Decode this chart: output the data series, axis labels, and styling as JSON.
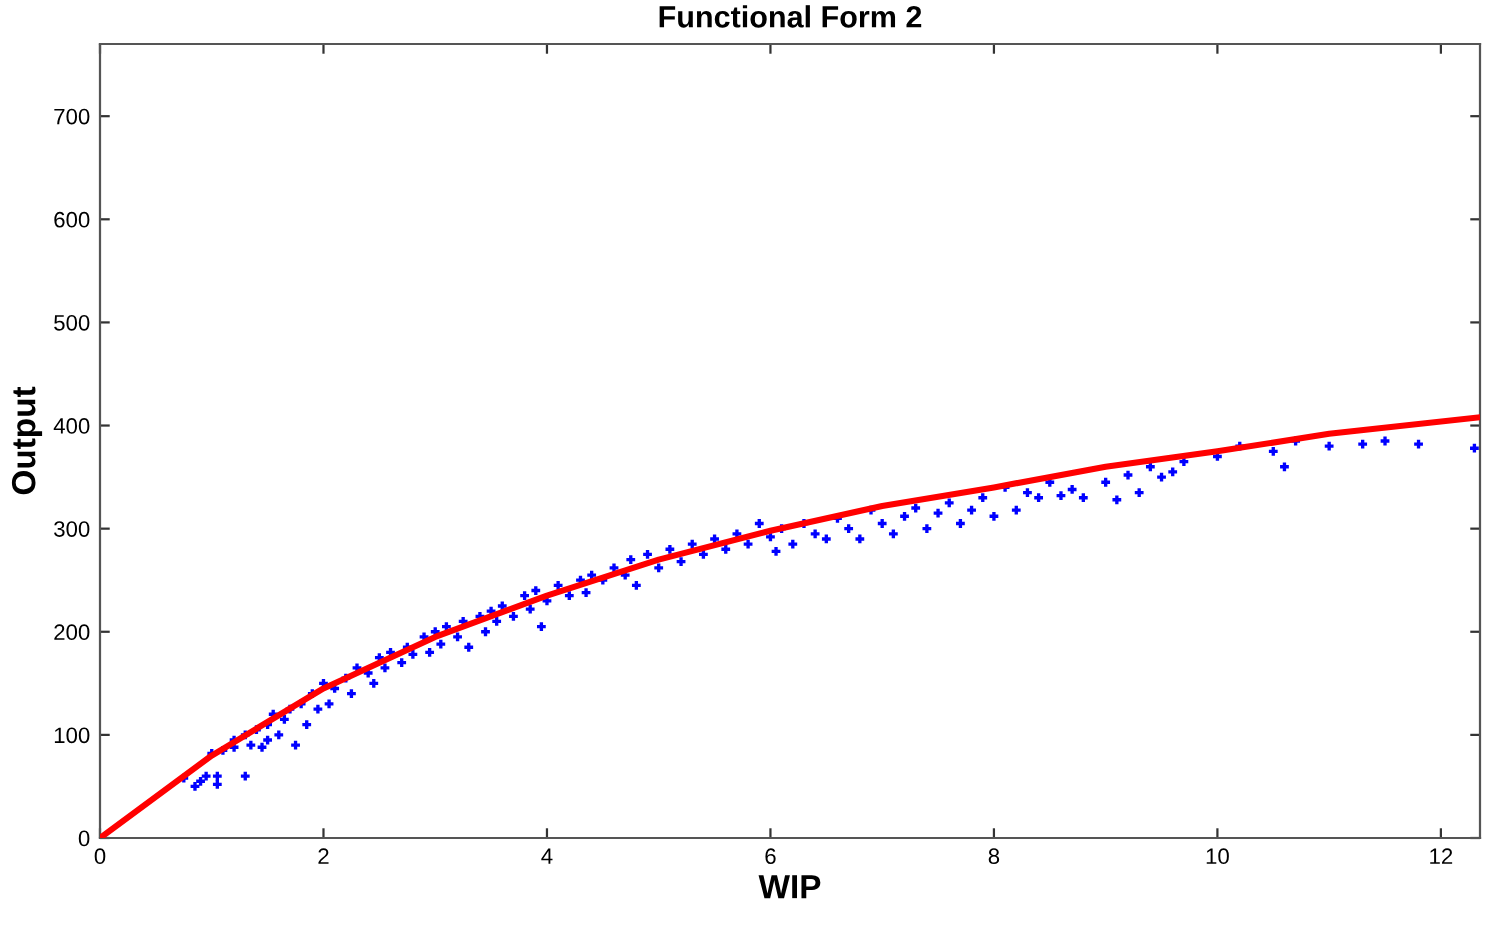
{
  "chart_data": {
    "type": "scatter",
    "title": "Functional Form 2",
    "xlabel": "WIP",
    "ylabel": "Output",
    "xlim": [
      0,
      12.35
    ],
    "ylim": [
      0,
      770
    ],
    "xticks": [
      0,
      2,
      4,
      6,
      8,
      10,
      12
    ],
    "yticks": [
      0,
      100,
      200,
      300,
      400,
      500,
      600,
      700
    ],
    "grid": false,
    "marker": "cross",
    "series": [
      {
        "color": "#0000ff",
        "x": [
          0.75,
          0.85,
          0.9,
          0.95,
          1.0,
          1.05,
          1.05,
          1.1,
          1.2,
          1.2,
          1.3,
          1.3,
          1.35,
          1.4,
          1.45,
          1.5,
          1.5,
          1.55,
          1.6,
          1.65,
          1.7,
          1.75,
          1.8,
          1.85,
          1.9,
          1.95,
          2.0,
          2.05,
          2.1,
          2.2,
          2.25,
          2.3,
          2.4,
          2.45,
          2.5,
          2.55,
          2.6,
          2.7,
          2.75,
          2.8,
          2.9,
          2.95,
          3.0,
          3.05,
          3.1,
          3.2,
          3.25,
          3.3,
          3.4,
          3.45,
          3.5,
          3.55,
          3.6,
          3.7,
          3.8,
          3.85,
          3.9,
          3.95,
          4.0,
          4.1,
          4.2,
          4.3,
          4.35,
          4.4,
          4.5,
          4.6,
          4.7,
          4.75,
          4.8,
          4.9,
          5.0,
          5.1,
          5.2,
          5.3,
          5.4,
          5.5,
          5.6,
          5.7,
          5.8,
          5.9,
          6.0,
          6.05,
          6.1,
          6.2,
          6.3,
          6.4,
          6.5,
          6.6,
          6.7,
          6.8,
          6.9,
          7.0,
          7.1,
          7.2,
          7.3,
          7.4,
          7.5,
          7.6,
          7.7,
          7.8,
          7.9,
          8.0,
          8.1,
          8.2,
          8.3,
          8.4,
          8.5,
          8.6,
          8.7,
          8.8,
          9.0,
          9.1,
          9.2,
          9.3,
          9.4,
          9.5,
          9.6,
          9.7,
          10.0,
          10.2,
          10.5,
          10.6,
          10.7,
          11.0,
          11.3,
          11.5,
          11.8,
          12.3
        ],
        "values": [
          58,
          50,
          55,
          60,
          82,
          60,
          52,
          85,
          88,
          95,
          60,
          100,
          90,
          105,
          88,
          95,
          110,
          120,
          100,
          115,
          125,
          90,
          130,
          110,
          140,
          125,
          150,
          130,
          145,
          155,
          140,
          165,
          160,
          150,
          175,
          165,
          180,
          170,
          185,
          178,
          195,
          180,
          200,
          188,
          205,
          195,
          210,
          185,
          215,
          200,
          220,
          210,
          225,
          215,
          235,
          222,
          240,
          205,
          230,
          245,
          235,
          250,
          238,
          255,
          250,
          262,
          255,
          270,
          245,
          275,
          262,
          280,
          268,
          285,
          275,
          290,
          280,
          295,
          285,
          305,
          292,
          278,
          300,
          285,
          305,
          295,
          290,
          310,
          300,
          290,
          318,
          305,
          295,
          312,
          320,
          300,
          315,
          325,
          305,
          318,
          330,
          312,
          340,
          318,
          335,
          330,
          345,
          332,
          338,
          330,
          345,
          328,
          352,
          335,
          360,
          350,
          355,
          365,
          370,
          380,
          375,
          360,
          385,
          380,
          382,
          385,
          382,
          378
        ]
      },
      {
        "type": "line",
        "color": "#ff0000",
        "marker": "none",
        "line_style": "solid",
        "x": [
          0,
          1,
          2,
          3,
          4,
          5,
          6,
          7,
          8,
          9,
          10,
          11,
          12.35
        ],
        "values": [
          0,
          80,
          145,
          195,
          235,
          270,
          298,
          322,
          340,
          360,
          375,
          392,
          408
        ]
      }
    ]
  }
}
